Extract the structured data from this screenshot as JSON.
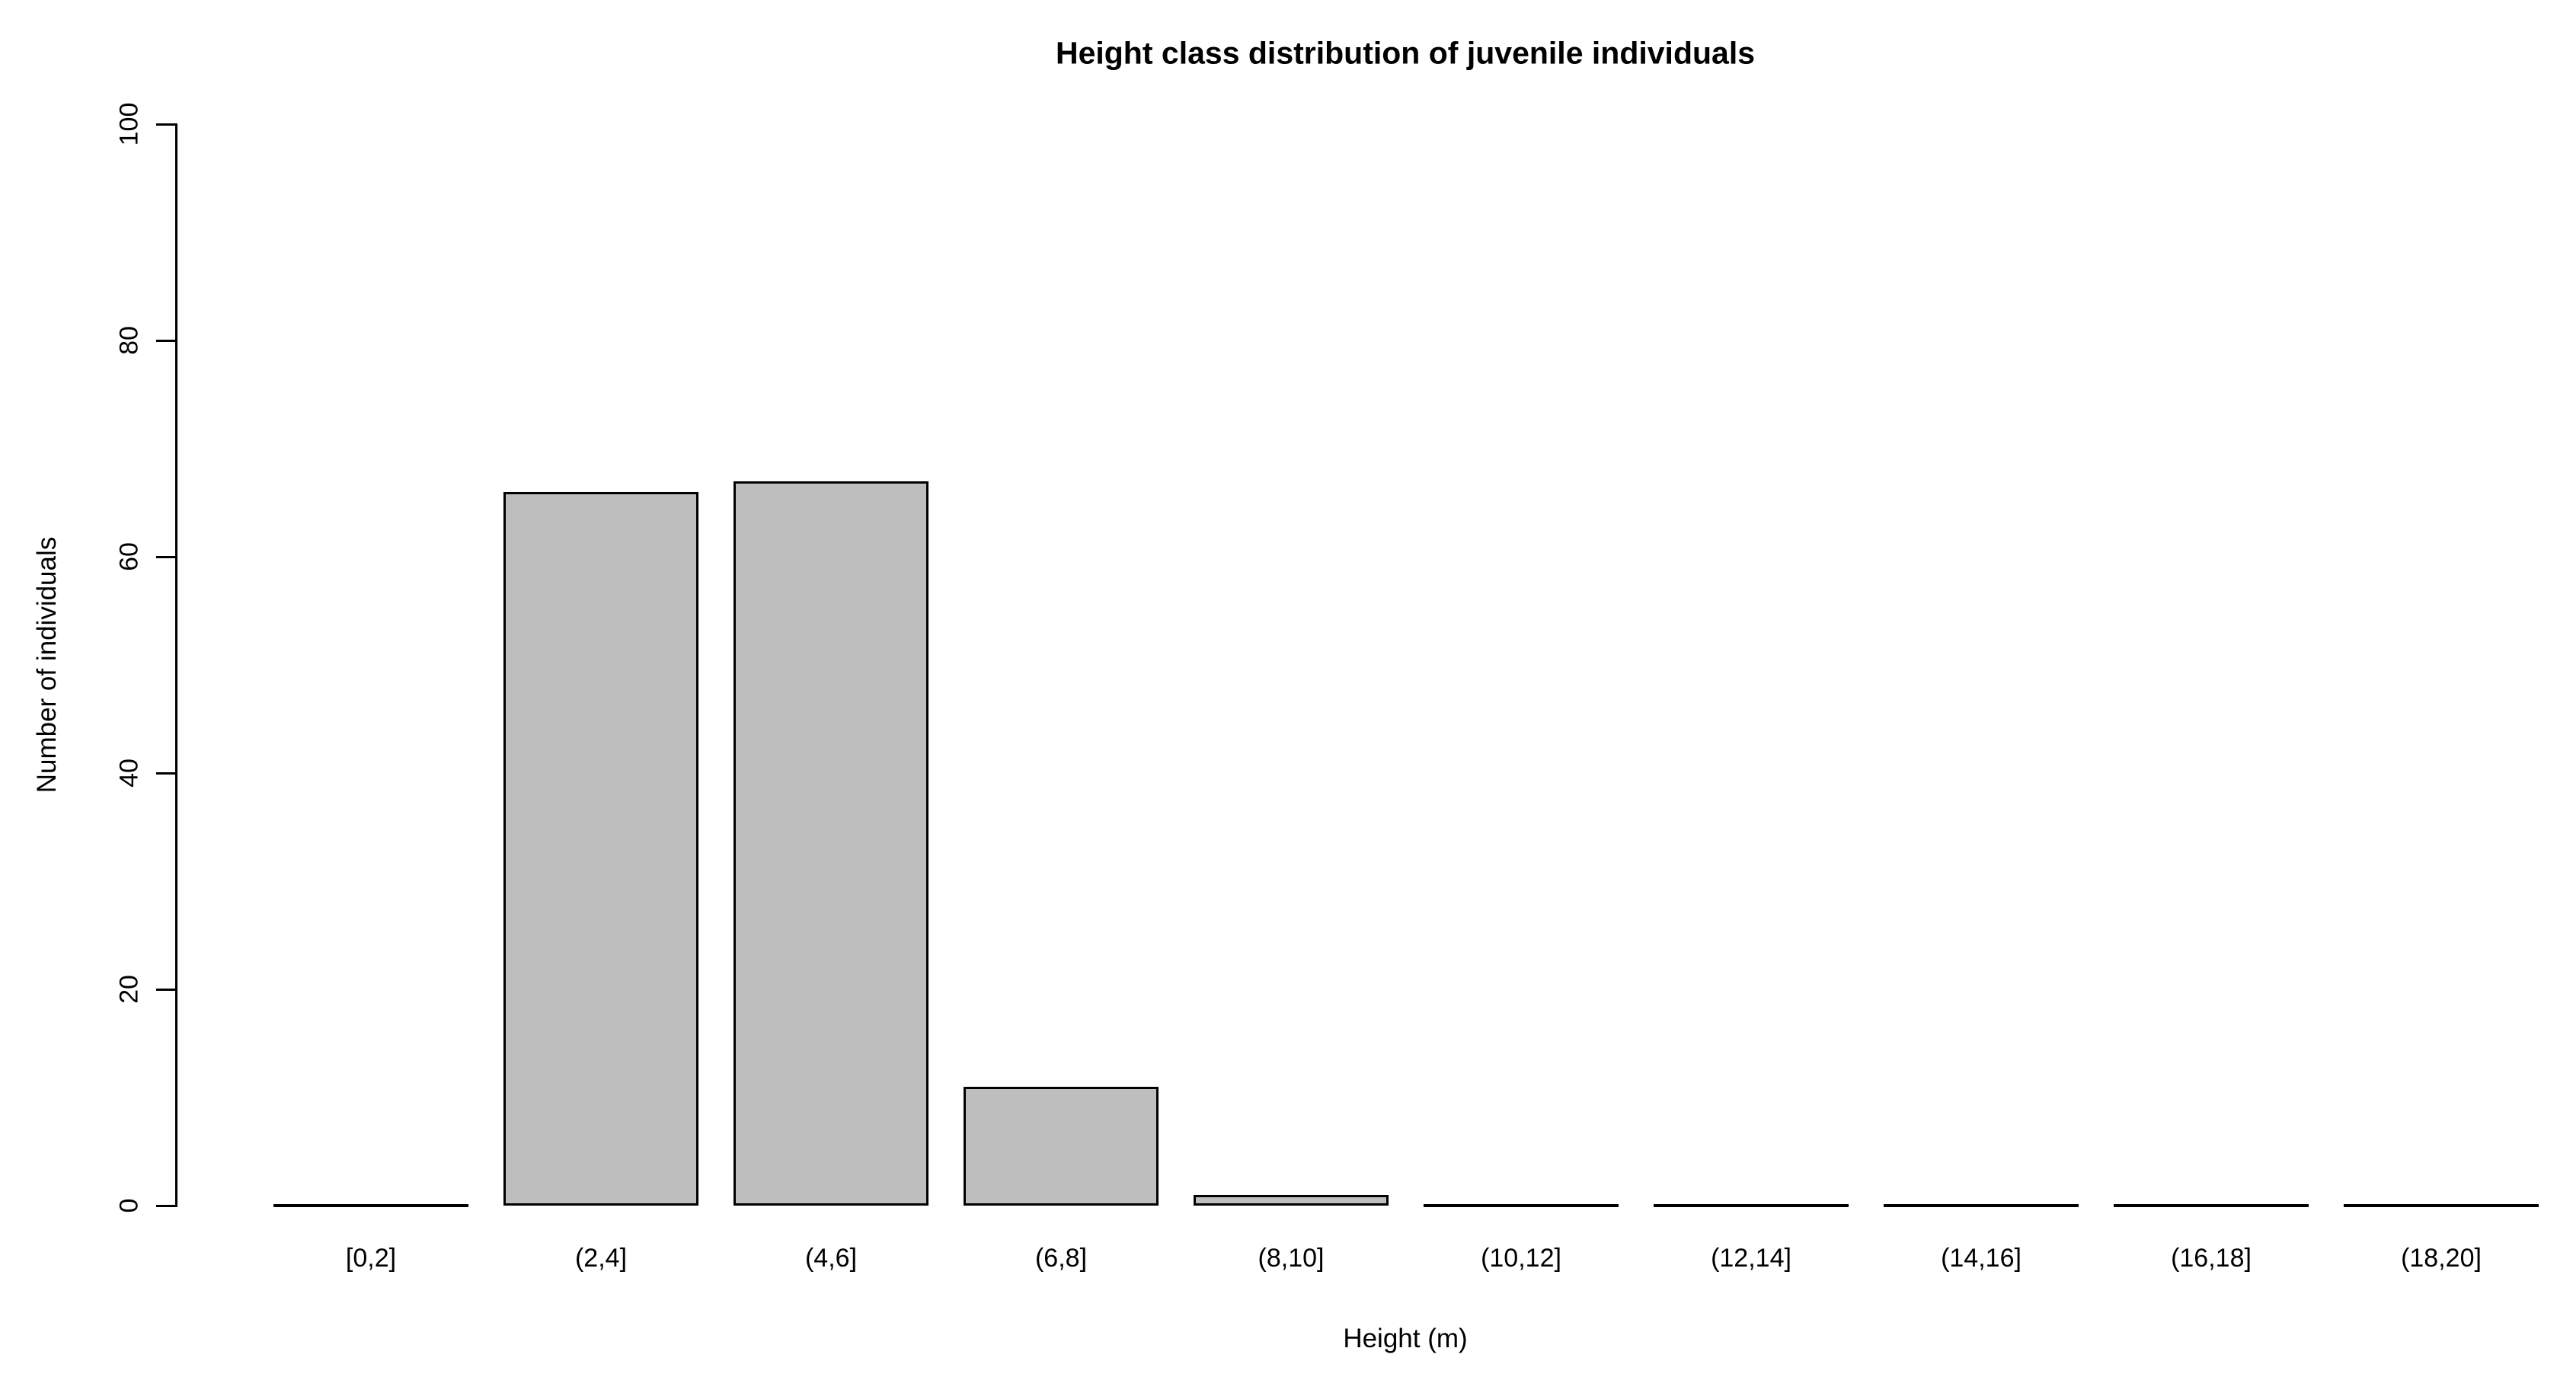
{
  "chart_data": {
    "type": "bar",
    "title": "Height class distribution of juvenile individuals",
    "xlabel": "Height (m)",
    "ylabel": "Number of individuals",
    "categories": [
      "[0,2]",
      "(2,4]",
      "(4,6]",
      "(6,8]",
      "(8,10]",
      "(10,12]",
      "(12,14]",
      "(14,16]",
      "(16,18]",
      "(18,20]"
    ],
    "values": [
      0,
      66,
      67,
      11,
      1,
      0,
      0,
      0,
      0,
      0
    ],
    "ylim": [
      0,
      100
    ],
    "yticks": [
      0,
      20,
      40,
      60,
      80,
      100
    ],
    "grid": false,
    "legend": false,
    "colors": {
      "bar_fill": "#bebebe",
      "bar_border": "#000000",
      "axis": "#000000",
      "text": "#000000",
      "background": "#ffffff"
    },
    "style_notes": "R base graphics barplot; zero-count classes drawn as flat baseline segments; y tick labels rotated 90 degrees"
  }
}
